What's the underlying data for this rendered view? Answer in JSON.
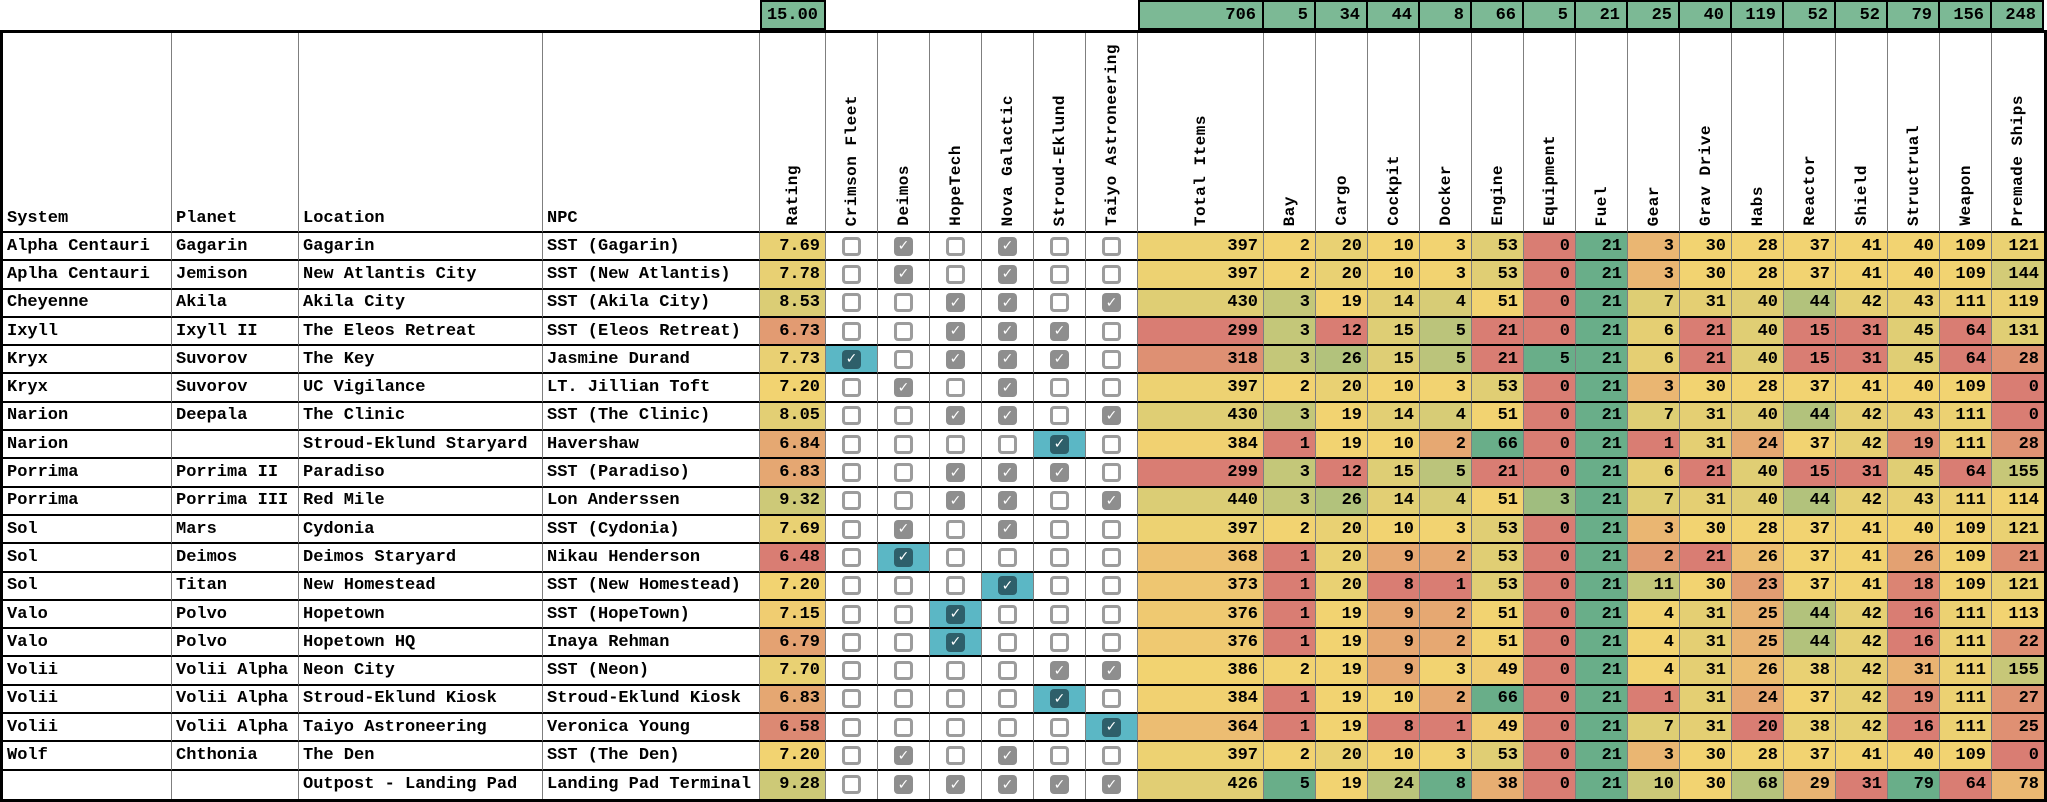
{
  "table": {
    "colors": {
      "header_green": "#7CB995",
      "scale_min_red": "#D97D73",
      "scale_mid_yellow": "#F2D371",
      "scale_max_green": "#69AE89",
      "teal_highlight": "#5BB7C5",
      "teal_check_box": "#2E5F6A",
      "checked_gray": "#8E8E8E",
      "check_mark": "#FFFFFF"
    },
    "check_icon": "✓",
    "text_columns": [
      {
        "key": "system",
        "label": "System"
      },
      {
        "key": "planet",
        "label": "Planet"
      },
      {
        "key": "location",
        "label": "Location"
      },
      {
        "key": "npc",
        "label": "NPC"
      }
    ],
    "rating_column": {
      "label": "Rating",
      "top_value": "15.00"
    },
    "manufacturer_columns": [
      {
        "label": "Crimson Fleet"
      },
      {
        "label": "Deimos"
      },
      {
        "label": "HopeTech"
      },
      {
        "label": "Nova Galactic"
      },
      {
        "label": "Stroud-Eklund"
      },
      {
        "label": "Taiyo Astroneering"
      }
    ],
    "item_columns": [
      {
        "label": "Total Items",
        "top_value": 706
      },
      {
        "label": "Bay",
        "top_value": 5
      },
      {
        "label": "Cargo",
        "top_value": 34
      },
      {
        "label": "Cockpit",
        "top_value": 44
      },
      {
        "label": "Docker",
        "top_value": 8
      },
      {
        "label": "Engine",
        "top_value": 66
      },
      {
        "label": "Equipment",
        "top_value": 5
      },
      {
        "label": "Fuel",
        "top_value": 21
      },
      {
        "label": "Gear",
        "top_value": 25
      },
      {
        "label": "Grav Drive",
        "top_value": 40
      },
      {
        "label": "Habs",
        "top_value": 119
      },
      {
        "label": "Reactor",
        "top_value": 52
      },
      {
        "label": "Shield",
        "top_value": 52
      },
      {
        "label": "Structrual",
        "top_value": 79
      },
      {
        "label": "Weapon",
        "top_value": 156
      },
      {
        "label": "Premade Ships",
        "top_value": 248
      }
    ],
    "rows": [
      {
        "system": "Alpha Centauri",
        "planet": "Gagarin",
        "location": "Gagarin",
        "npc": "SST (Gagarin)",
        "rating": "7.69",
        "checks": [
          0,
          1,
          0,
          1,
          0,
          0
        ],
        "values": [
          397,
          2,
          20,
          10,
          3,
          53,
          0,
          21,
          3,
          30,
          28,
          37,
          41,
          40,
          109,
          121
        ]
      },
      {
        "system": "Aplha Centauri",
        "planet": "Jemison",
        "location": "New Atlantis City",
        "npc": "SST (New Atlantis)",
        "rating": "7.78",
        "checks": [
          0,
          1,
          0,
          1,
          0,
          0
        ],
        "values": [
          397,
          2,
          20,
          10,
          3,
          53,
          0,
          21,
          3,
          30,
          28,
          37,
          41,
          40,
          109,
          144
        ]
      },
      {
        "system": "Cheyenne",
        "planet": "Akila",
        "location": "Akila City",
        "npc": "SST (Akila City)",
        "rating": "8.53",
        "checks": [
          0,
          0,
          1,
          1,
          0,
          1
        ],
        "values": [
          430,
          3,
          19,
          14,
          4,
          51,
          0,
          21,
          7,
          31,
          40,
          44,
          42,
          43,
          111,
          119
        ]
      },
      {
        "system": "Ixyll",
        "planet": "Ixyll II",
        "location": "The Eleos Retreat",
        "npc": "SST (Eleos Retreat)",
        "rating": "6.73",
        "checks": [
          0,
          0,
          1,
          1,
          1,
          0
        ],
        "values": [
          299,
          3,
          12,
          15,
          5,
          21,
          0,
          21,
          6,
          21,
          40,
          15,
          31,
          45,
          64,
          131
        ]
      },
      {
        "system": "Kryx",
        "planet": "Suvorov",
        "location": "The Key",
        "npc": "Jasmine Durand",
        "rating": "7.73",
        "checks": [
          2,
          0,
          1,
          1,
          1,
          0
        ],
        "values": [
          318,
          3,
          26,
          15,
          5,
          21,
          5,
          21,
          6,
          21,
          40,
          15,
          31,
          45,
          64,
          28
        ]
      },
      {
        "system": "Kryx",
        "planet": "Suvorov",
        "location": "UC Vigilance",
        "npc": "LT. Jillian Toft",
        "rating": "7.20",
        "checks": [
          0,
          1,
          0,
          1,
          0,
          0
        ],
        "values": [
          397,
          2,
          20,
          10,
          3,
          53,
          0,
          21,
          3,
          30,
          28,
          37,
          41,
          40,
          109,
          0
        ]
      },
      {
        "system": "Narion",
        "planet": "Deepala",
        "location": "The Clinic",
        "npc": "SST (The Clinic)",
        "rating": "8.05",
        "checks": [
          0,
          0,
          1,
          1,
          0,
          1
        ],
        "values": [
          430,
          3,
          19,
          14,
          4,
          51,
          0,
          21,
          7,
          31,
          40,
          44,
          42,
          43,
          111,
          0
        ]
      },
      {
        "system": "Narion",
        "planet": "",
        "location": "Stroud-Eklund Staryard",
        "npc": "Havershaw",
        "rating": "6.84",
        "checks": [
          0,
          0,
          0,
          0,
          2,
          0
        ],
        "values": [
          384,
          1,
          19,
          10,
          2,
          66,
          0,
          21,
          1,
          31,
          24,
          37,
          42,
          19,
          111,
          28
        ]
      },
      {
        "system": "Porrima",
        "planet": "Porrima II",
        "location": "Paradiso",
        "npc": "SST (Paradiso)",
        "rating": "6.83",
        "checks": [
          0,
          0,
          1,
          1,
          1,
          0
        ],
        "values": [
          299,
          3,
          12,
          15,
          5,
          21,
          0,
          21,
          6,
          21,
          40,
          15,
          31,
          45,
          64,
          155
        ]
      },
      {
        "system": "Porrima",
        "planet": "Porrima III",
        "location": "Red Mile",
        "npc": "Lon Anderssen",
        "rating": "9.32",
        "checks": [
          0,
          0,
          1,
          1,
          0,
          1
        ],
        "values": [
          440,
          3,
          26,
          14,
          4,
          51,
          3,
          21,
          7,
          31,
          40,
          44,
          42,
          43,
          111,
          114
        ]
      },
      {
        "system": "Sol",
        "planet": "Mars",
        "location": "Cydonia",
        "npc": "SST (Cydonia)",
        "rating": "7.69",
        "checks": [
          0,
          1,
          0,
          1,
          0,
          0
        ],
        "values": [
          397,
          2,
          20,
          10,
          3,
          53,
          0,
          21,
          3,
          30,
          28,
          37,
          41,
          40,
          109,
          121
        ]
      },
      {
        "system": "Sol",
        "planet": "Deimos",
        "location": "Deimos Staryard",
        "npc": "Nikau Henderson",
        "rating": "6.48",
        "checks": [
          0,
          2,
          0,
          0,
          0,
          0
        ],
        "values": [
          368,
          1,
          20,
          9,
          2,
          53,
          0,
          21,
          2,
          21,
          26,
          37,
          41,
          26,
          109,
          21
        ]
      },
      {
        "system": "Sol",
        "planet": "Titan",
        "location": "New Homestead",
        "npc": "SST (New Homestead)",
        "rating": "7.20",
        "checks": [
          0,
          0,
          0,
          2,
          0,
          0
        ],
        "values": [
          373,
          1,
          20,
          8,
          1,
          53,
          0,
          21,
          11,
          30,
          23,
          37,
          41,
          18,
          109,
          121
        ]
      },
      {
        "system": "Valo",
        "planet": "Polvo",
        "location": "Hopetown",
        "npc": "SST (HopeTown)",
        "rating": "7.15",
        "checks": [
          0,
          0,
          2,
          0,
          0,
          0
        ],
        "values": [
          376,
          1,
          19,
          9,
          2,
          51,
          0,
          21,
          4,
          31,
          25,
          44,
          42,
          16,
          111,
          113
        ]
      },
      {
        "system": "Valo",
        "planet": "Polvo",
        "location": "Hopetown HQ",
        "npc": "Inaya Rehman",
        "rating": "6.79",
        "checks": [
          0,
          0,
          2,
          0,
          0,
          0
        ],
        "values": [
          376,
          1,
          19,
          9,
          2,
          51,
          0,
          21,
          4,
          31,
          25,
          44,
          42,
          16,
          111,
          22
        ]
      },
      {
        "system": "Volii",
        "planet": "Volii Alpha",
        "location": "Neon City",
        "npc": "SST (Neon)",
        "rating": "7.70",
        "checks": [
          0,
          0,
          0,
          0,
          1,
          1
        ],
        "values": [
          386,
          2,
          19,
          9,
          3,
          49,
          0,
          21,
          4,
          31,
          26,
          38,
          42,
          31,
          111,
          155
        ]
      },
      {
        "system": "Volii",
        "planet": "Volii Alpha",
        "location": "Stroud-Eklund Kiosk",
        "npc": "Stroud-Eklund Kiosk",
        "rating": "6.83",
        "checks": [
          0,
          0,
          0,
          0,
          2,
          0
        ],
        "values": [
          384,
          1,
          19,
          10,
          2,
          66,
          0,
          21,
          1,
          31,
          24,
          37,
          42,
          19,
          111,
          27
        ]
      },
      {
        "system": "Volii",
        "planet": "Volii Alpha",
        "location": "Taiyo Astroneering",
        "npc": "Veronica Young",
        "rating": "6.58",
        "checks": [
          0,
          0,
          0,
          0,
          0,
          2
        ],
        "values": [
          364,
          1,
          19,
          8,
          1,
          49,
          0,
          21,
          7,
          31,
          20,
          38,
          42,
          16,
          111,
          25
        ]
      },
      {
        "system": "Wolf",
        "planet": "Chthonia",
        "location": "The Den",
        "npc": "SST (The Den)",
        "rating": "7.20",
        "checks": [
          0,
          1,
          0,
          1,
          0,
          0
        ],
        "values": [
          397,
          2,
          20,
          10,
          3,
          53,
          0,
          21,
          3,
          30,
          28,
          37,
          41,
          40,
          109,
          0
        ]
      },
      {
        "system": "",
        "planet": "",
        "location": "Outpost - Landing Pad",
        "npc": "Landing Pad Terminal",
        "rating": "9.28",
        "checks": [
          0,
          1,
          1,
          1,
          1,
          1
        ],
        "values": [
          426,
          5,
          19,
          24,
          8,
          38,
          0,
          21,
          10,
          30,
          68,
          29,
          31,
          79,
          64,
          78
        ]
      }
    ]
  }
}
